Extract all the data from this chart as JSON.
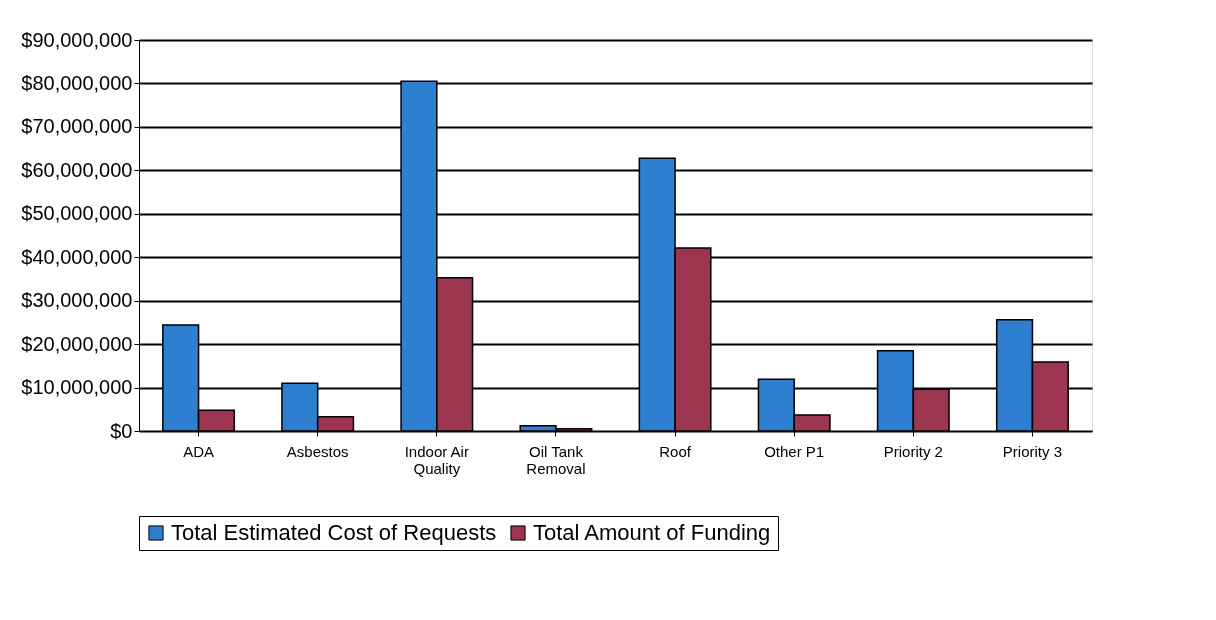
{
  "chart_data": {
    "type": "bar",
    "categories": [
      "ADA",
      "Asbestos",
      "Indoor Air Quality",
      "Oil Tank Removal",
      "Roof",
      "Other P1",
      "Priority 2",
      "Priority 3"
    ],
    "series": [
      {
        "name": "Total Estimated Cost of Requests",
        "color": "#2f7fd0",
        "values": [
          24400000,
          11000000,
          80500000,
          1200000,
          62800000,
          11900000,
          18500000,
          25600000
        ]
      },
      {
        "name": "Total Amount of Funding",
        "color": "#9b3550",
        "values": [
          4800000,
          3300000,
          35300000,
          500000,
          42100000,
          3700000,
          9600000,
          15900000
        ]
      }
    ],
    "ylim": [
      0,
      90000000
    ],
    "yticks": [
      {
        "value": 0,
        "label": "$0"
      },
      {
        "value": 10000000,
        "label": "$10,000,000"
      },
      {
        "value": 20000000,
        "label": "$20,000,000"
      },
      {
        "value": 30000000,
        "label": "$30,000,000"
      },
      {
        "value": 40000000,
        "label": "$40,000,000"
      },
      {
        "value": 50000000,
        "label": "$50,000,000"
      },
      {
        "value": 60000000,
        "label": "$60,000,000"
      },
      {
        "value": 70000000,
        "label": "$70,000,000"
      },
      {
        "value": 80000000,
        "label": "$80,000,000"
      },
      {
        "value": 90000000,
        "label": "$90,000,000"
      }
    ],
    "grid": "y",
    "legend": "bottom"
  }
}
